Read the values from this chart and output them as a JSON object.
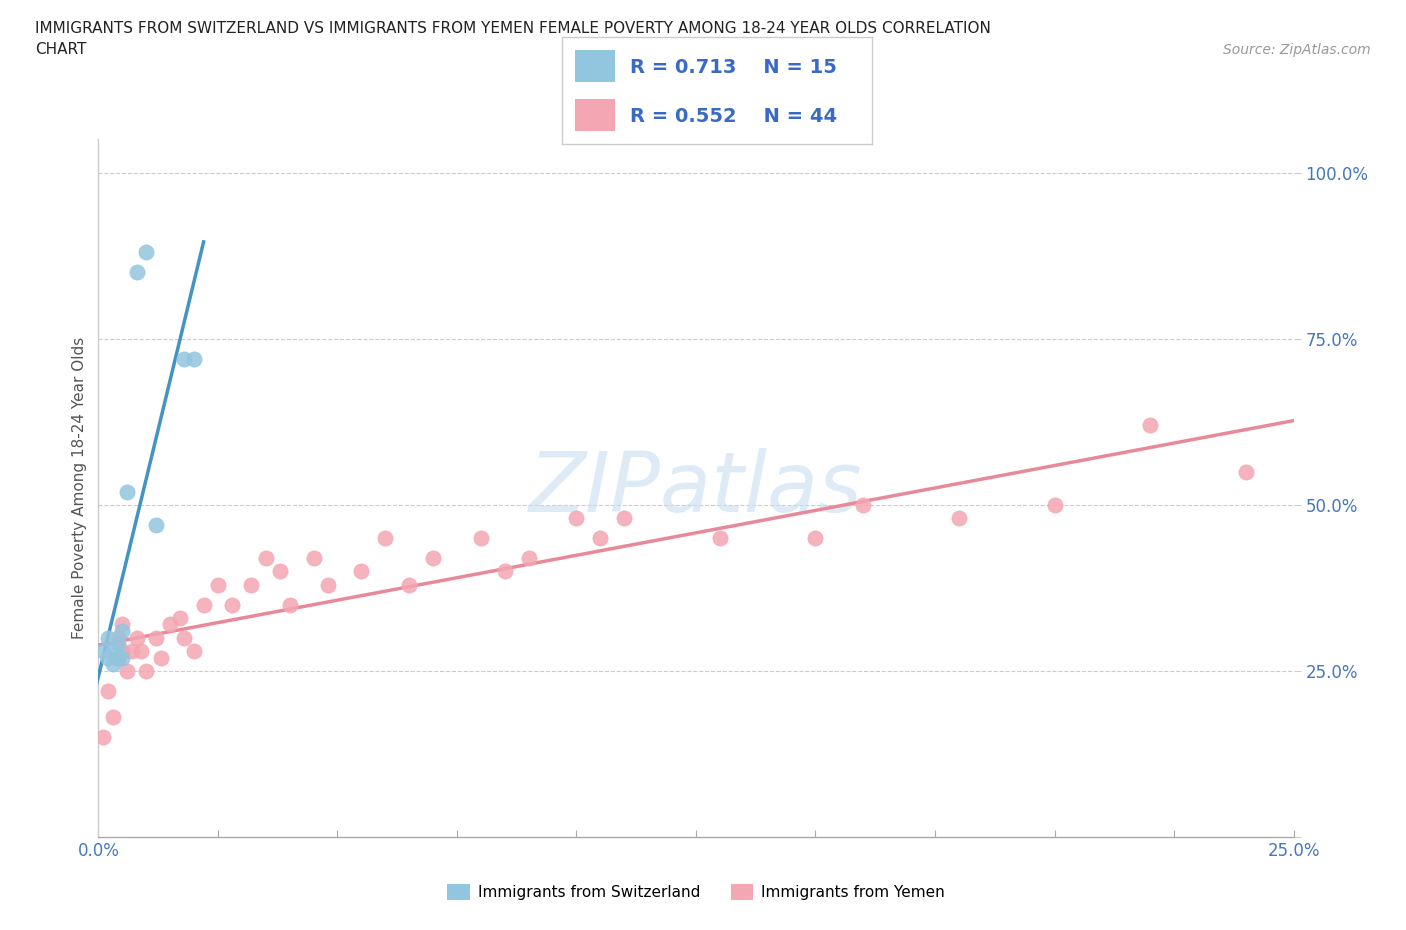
{
  "title_line1": "IMMIGRANTS FROM SWITZERLAND VS IMMIGRANTS FROM YEMEN FEMALE POVERTY AMONG 18-24 YEAR OLDS CORRELATION",
  "title_line2": "CHART",
  "source_text": "Source: ZipAtlas.com",
  "ylabel": "Female Poverty Among 18-24 Year Olds",
  "xlim": [
    0.0,
    0.25
  ],
  "ylim": [
    0.0,
    1.05
  ],
  "xtick_positions": [
    0.0,
    0.025,
    0.05,
    0.075,
    0.1,
    0.125,
    0.15,
    0.175,
    0.2,
    0.225,
    0.25
  ],
  "xticklabels": [
    "0.0%",
    "",
    "",
    "",
    "",
    "",
    "",
    "",
    "",
    "",
    "25.0%"
  ],
  "ytick_positions": [
    0.0,
    0.25,
    0.5,
    0.75,
    1.0
  ],
  "yticklabels": [
    "",
    "25.0%",
    "50.0%",
    "75.0%",
    "100.0%"
  ],
  "switzerland_color": "#92C5DE",
  "yemen_color": "#F4A6B2",
  "switzerland_line_color": "#4393C3",
  "yemen_line_color": "#E8899A",
  "r_switzerland": 0.713,
  "n_switzerland": 15,
  "r_yemen": 0.552,
  "n_yemen": 44,
  "legend_text_color": "#3A6BC4",
  "watermark": "ZIPatlas",
  "swiss_x": [
    0.001,
    0.002,
    0.002,
    0.003,
    0.003,
    0.004,
    0.004,
    0.005,
    0.005,
    0.006,
    0.008,
    0.01,
    0.012,
    0.018,
    0.02
  ],
  "swiss_y": [
    0.28,
    0.27,
    0.3,
    0.26,
    0.28,
    0.29,
    0.27,
    0.27,
    0.31,
    0.52,
    0.85,
    0.88,
    0.47,
    0.72,
    0.72
  ],
  "yemen_x": [
    0.001,
    0.002,
    0.003,
    0.004,
    0.004,
    0.005,
    0.005,
    0.006,
    0.007,
    0.008,
    0.009,
    0.01,
    0.012,
    0.013,
    0.015,
    0.017,
    0.018,
    0.02,
    0.022,
    0.025,
    0.028,
    0.032,
    0.035,
    0.038,
    0.04,
    0.045,
    0.048,
    0.055,
    0.06,
    0.065,
    0.07,
    0.08,
    0.085,
    0.09,
    0.1,
    0.105,
    0.11,
    0.13,
    0.15,
    0.16,
    0.18,
    0.2,
    0.22,
    0.24
  ],
  "yemen_y": [
    0.15,
    0.22,
    0.18,
    0.27,
    0.3,
    0.28,
    0.32,
    0.25,
    0.28,
    0.3,
    0.28,
    0.25,
    0.3,
    0.27,
    0.32,
    0.33,
    0.3,
    0.28,
    0.35,
    0.38,
    0.35,
    0.38,
    0.42,
    0.4,
    0.35,
    0.42,
    0.38,
    0.4,
    0.45,
    0.38,
    0.42,
    0.45,
    0.4,
    0.42,
    0.48,
    0.45,
    0.48,
    0.45,
    0.45,
    0.5,
    0.48,
    0.5,
    0.62,
    0.55
  ]
}
